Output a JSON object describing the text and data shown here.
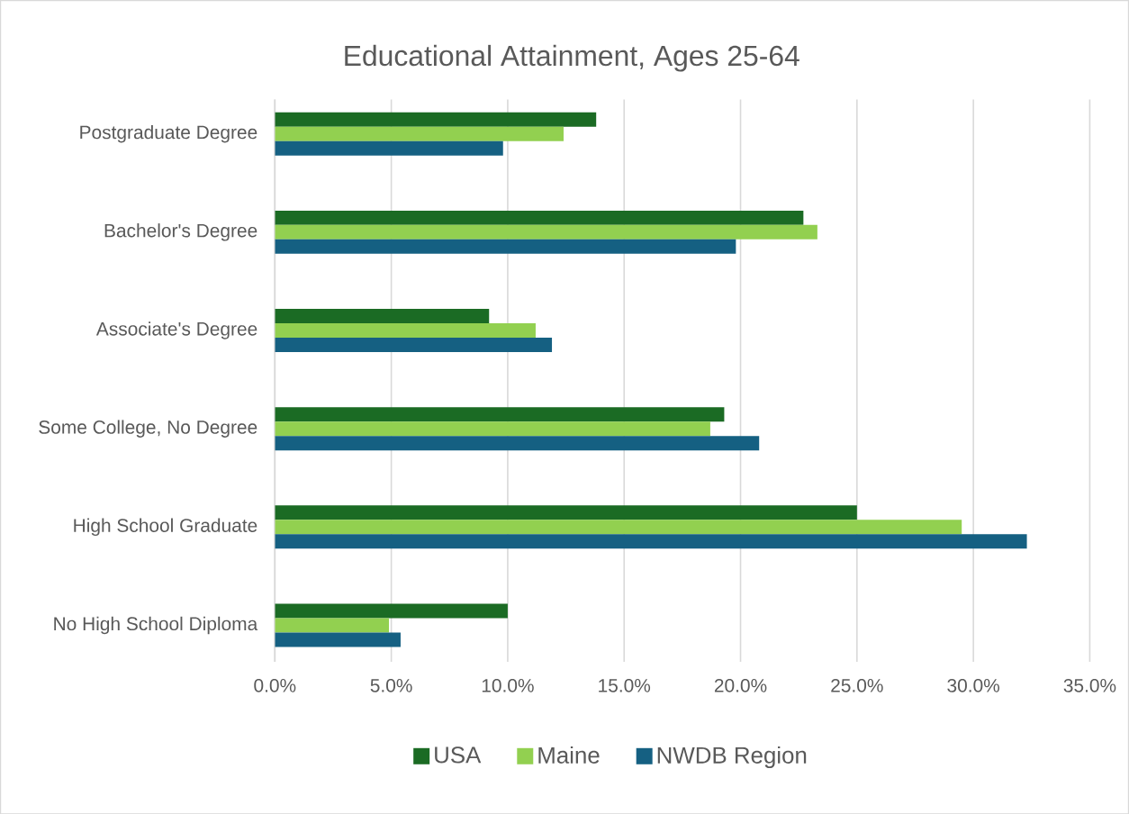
{
  "chart_data": {
    "type": "bar",
    "orientation": "horizontal",
    "title": "Educational Attainment, Ages 25-64",
    "categories": [
      "Postgraduate Degree",
      "Bachelor's Degree",
      "Associate's Degree",
      "Some College, No Degree",
      "High School Graduate",
      "No High School Diploma"
    ],
    "series": [
      {
        "name": "USA",
        "color": "#1b6b24",
        "values": [
          13.8,
          22.7,
          9.2,
          19.3,
          25.0,
          10.0
        ]
      },
      {
        "name": "Maine",
        "color": "#92d050",
        "values": [
          12.4,
          23.3,
          11.2,
          18.7,
          29.5,
          4.9
        ]
      },
      {
        "name": "NWDB Region",
        "color": "#156082",
        "values": [
          9.8,
          19.8,
          11.9,
          20.8,
          32.3,
          5.4
        ]
      }
    ],
    "xlim": [
      0,
      35
    ],
    "xticks": [
      {
        "value": 0,
        "label": "0.0%"
      },
      {
        "value": 5,
        "label": "5.0%"
      },
      {
        "value": 10,
        "label": "10.0%"
      },
      {
        "value": 15,
        "label": "15.0%"
      },
      {
        "value": 20,
        "label": "20.0%"
      },
      {
        "value": 25,
        "label": "25.0%"
      },
      {
        "value": 30,
        "label": "30.0%"
      },
      {
        "value": 35,
        "label": "35.0%"
      }
    ],
    "grid": "x",
    "legend": "bottom"
  }
}
